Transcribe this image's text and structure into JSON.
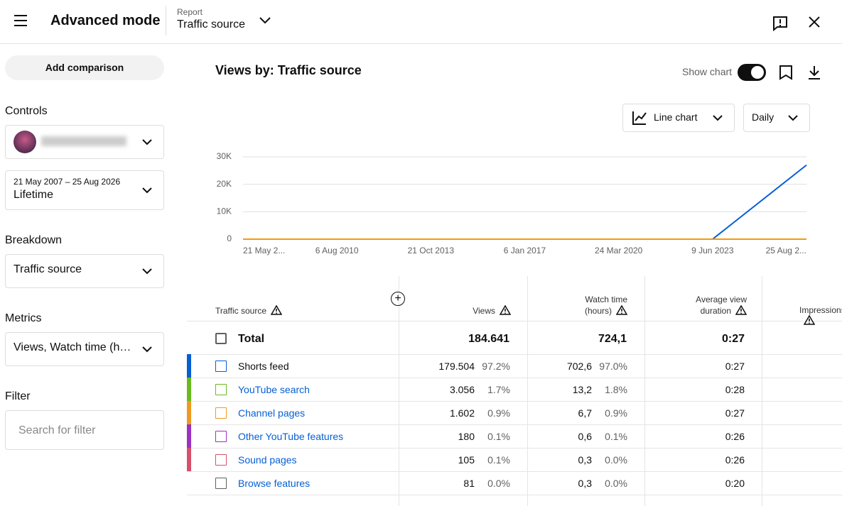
{
  "header": {
    "title": "Advanced mode",
    "report_label": "Report",
    "report_value": "Traffic source"
  },
  "sidebar": {
    "add_comparison": "Add comparison",
    "controls_label": "Controls",
    "date_range": "21 May 2007 – 25 Aug 2026",
    "period": "Lifetime",
    "breakdown_label": "Breakdown",
    "breakdown_value": "Traffic source",
    "metrics_label": "Metrics",
    "metrics_value": "Views, Watch time (h…",
    "filter_label": "Filter",
    "filter_placeholder": "Search for filter"
  },
  "panel": {
    "title": "Views by: Traffic source",
    "show_chart": "Show chart",
    "chart_type": "Line chart",
    "interval": "Daily"
  },
  "chart": {
    "type": "line",
    "categories": [
      "21 May 2...",
      "6 Aug 2010",
      "21 Oct 2013",
      "6 Jan 2017",
      "24 Mar 2020",
      "9 Jun 2023",
      "25 Aug 2..."
    ],
    "series": [
      {
        "color": "#065fd4",
        "values": [
          0,
          0,
          0,
          0,
          0,
          0,
          27000
        ]
      },
      {
        "color": "#f29b0c",
        "values": [
          0,
          0,
          0,
          0,
          0,
          0,
          0
        ]
      }
    ],
    "ylim": [
      0,
      30000
    ],
    "yticks": [
      0,
      {
        "value": 10000,
        "label": "10K"
      },
      {
        "value": 20000,
        "label": "20K"
      },
      {
        "value": 30000,
        "label": "30K"
      }
    ],
    "grid": true
  },
  "table": {
    "columns": [
      "Traffic source",
      "Views",
      "Watch time (hours)",
      "Average view duration",
      "Impressions"
    ],
    "total": {
      "label": "Total",
      "views": "184.641",
      "watch_time": "724,1",
      "avg_duration": "0:27"
    },
    "rows": [
      {
        "name": "Shorts feed",
        "color": "#065fd4",
        "views": "179.504",
        "views_share": "97.2%",
        "watch_time": "702,6",
        "watch_share": "97.0%",
        "avg_duration": "0:27"
      },
      {
        "name": "YouTube search",
        "color": "#6aba1e",
        "views": "3.056",
        "views_share": "1.7%",
        "watch_time": "13,2",
        "watch_share": "1.8%",
        "avg_duration": "0:28"
      },
      {
        "name": "Channel pages",
        "color": "#ec9b20",
        "views": "1.602",
        "views_share": "0.9%",
        "watch_time": "6,7",
        "watch_share": "0.9%",
        "avg_duration": "0:27"
      },
      {
        "name": "Other YouTube features",
        "color": "#9b32c1",
        "views": "180",
        "views_share": "0.1%",
        "watch_time": "0,6",
        "watch_share": "0.1%",
        "avg_duration": "0:26"
      },
      {
        "name": "Sound pages",
        "color": "#d6506c",
        "views": "105",
        "views_share": "0.1%",
        "watch_time": "0,3",
        "watch_share": "0.0%",
        "avg_duration": "0:26"
      },
      {
        "name": "Browse features",
        "views": "81",
        "views_share": "0.0%",
        "watch_time": "0,3",
        "watch_share": "0.0%",
        "avg_duration": "0:20"
      }
    ]
  }
}
